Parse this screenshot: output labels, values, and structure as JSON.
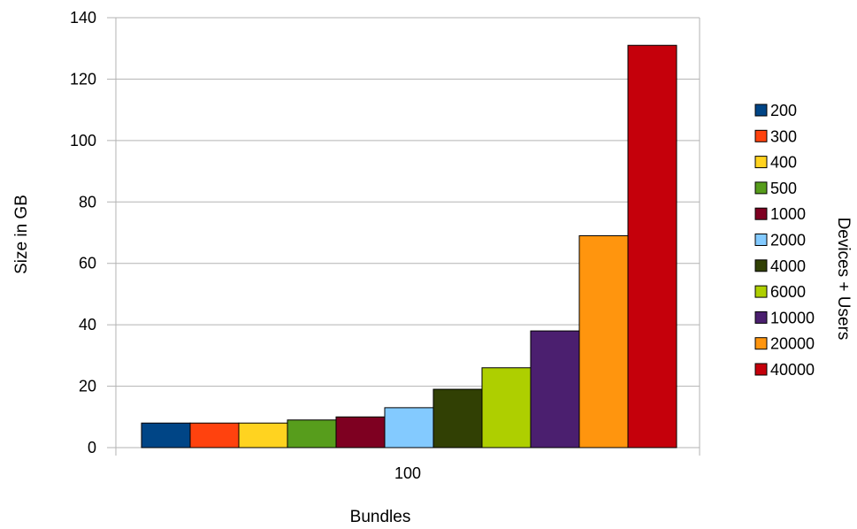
{
  "chart_data": {
    "type": "bar",
    "categories": [
      "100"
    ],
    "xlabel": "Bundles",
    "ylabel": "Size in GB",
    "legend_title": "Devices + Users",
    "ylim": [
      0,
      140
    ],
    "yticks": [
      0,
      20,
      40,
      60,
      80,
      100,
      120,
      140
    ],
    "grid": true,
    "legend_position": "right",
    "series": [
      {
        "name": "200",
        "values": [
          8
        ],
        "color": "#004586"
      },
      {
        "name": "300",
        "values": [
          8
        ],
        "color": "#ff420e"
      },
      {
        "name": "400",
        "values": [
          8
        ],
        "color": "#ffd320"
      },
      {
        "name": "500",
        "values": [
          9
        ],
        "color": "#579d1c"
      },
      {
        "name": "1000",
        "values": [
          10
        ],
        "color": "#7e0021"
      },
      {
        "name": "2000",
        "values": [
          13
        ],
        "color": "#83caff"
      },
      {
        "name": "4000",
        "values": [
          19
        ],
        "color": "#314004"
      },
      {
        "name": "6000",
        "values": [
          26
        ],
        "color": "#aecf00"
      },
      {
        "name": "10000",
        "values": [
          38
        ],
        "color": "#4b1f6f"
      },
      {
        "name": "20000",
        "values": [
          69
        ],
        "color": "#ff950e"
      },
      {
        "name": "40000",
        "values": [
          131
        ],
        "color": "#c5000b"
      }
    ]
  }
}
